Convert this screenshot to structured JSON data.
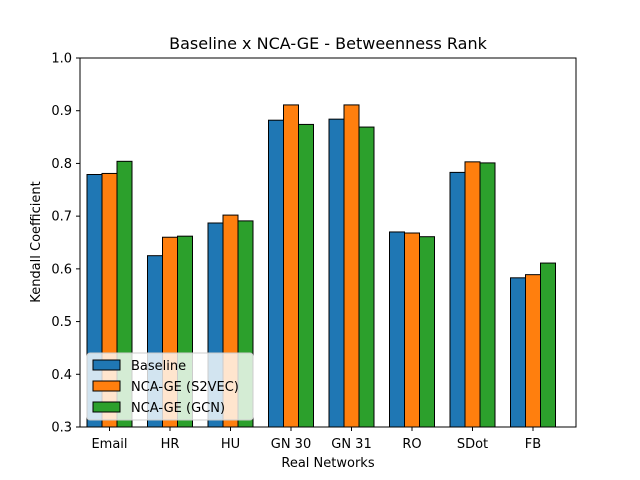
{
  "chart_data": {
    "type": "bar",
    "title": "Baseline x NCA-GE - Betweenness Rank",
    "xlabel": "Real Networks",
    "ylabel": "Kendall Coefficient",
    "ylim": [
      0.3,
      1.0
    ],
    "yticks": [
      "0.3",
      "0.4",
      "0.5",
      "0.6",
      "0.7",
      "0.8",
      "0.9",
      "1.0"
    ],
    "grid": false,
    "legend_position": "lower-left",
    "categories": [
      "Email",
      "HR",
      "HU",
      "GN 30",
      "GN 31",
      "RO",
      "SDot",
      "FB"
    ],
    "series": [
      {
        "name": "Baseline",
        "color": "#1f77b4",
        "values": [
          0.779,
          0.625,
          0.687,
          0.882,
          0.884,
          0.67,
          0.783,
          0.583
        ]
      },
      {
        "name": "NCA-GE (S2VEC)",
        "color": "#ff7f0e",
        "values": [
          0.781,
          0.66,
          0.702,
          0.911,
          0.911,
          0.668,
          0.803,
          0.589
        ]
      },
      {
        "name": "NCA-GE (GCN)",
        "color": "#2ca02c",
        "values": [
          0.804,
          0.662,
          0.691,
          0.874,
          0.869,
          0.661,
          0.801,
          0.611
        ]
      }
    ]
  }
}
